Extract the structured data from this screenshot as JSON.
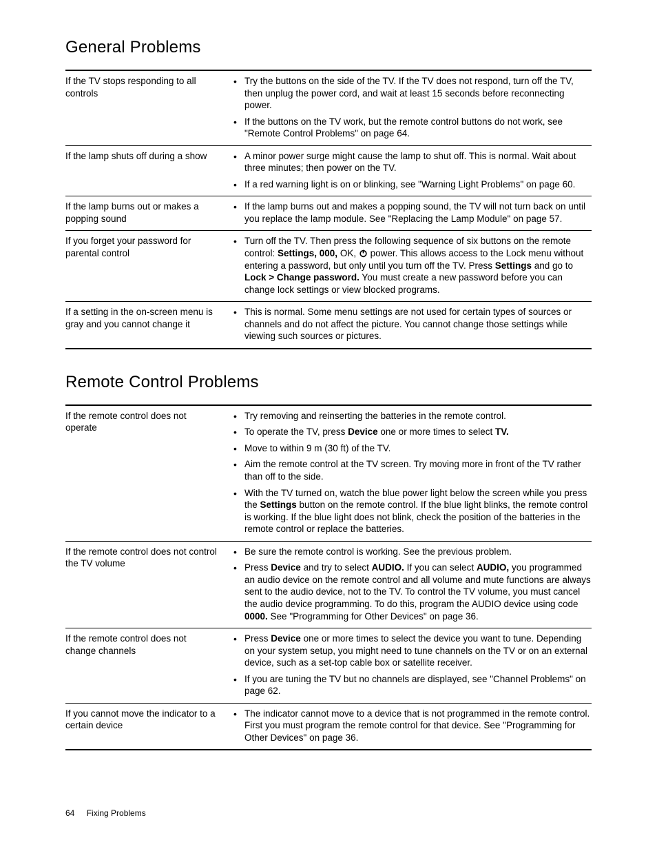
{
  "sections": [
    {
      "heading": "General Problems",
      "rows": [
        {
          "problem": "If the TV stops responding to all controls",
          "bullets": [
            "Try the buttons on the side of the TV. If the TV does not respond, turn off the TV, then unplug the power cord, and wait at least 15 seconds before reconnecting power.",
            "If the buttons on the TV work, but the remote control buttons do not work, see \"Remote Control Problems\" on page 64."
          ]
        },
        {
          "problem": "If the lamp shuts off during a show",
          "bullets": [
            "A minor power surge might cause the lamp to shut off. This is normal. Wait about three minutes; then power on the TV.",
            "If a red warning light is on or blinking, see \"Warning Light Problems\" on page 60."
          ]
        },
        {
          "problem": "If the lamp burns out or makes a popping sound",
          "bullets": [
            "If the lamp burns out and makes a popping sound, the TV will not turn back on until you replace the lamp module. See \"Replacing the Lamp Module\" on page 57."
          ]
        },
        {
          "problem": "If you forget your password for parental control",
          "bullets_html": [
            "Turn off the TV. Then press the following sequence of six buttons on the remote control: <b>Settings, 000,</b> OK, {{POWER}} power. This allows access to the Lock menu without entering a password, but only until you turn off the TV. Press <b>Settings</b> and go to <b>Lock &gt; Change password.</b> You must create a new password before you can change lock settings or view blocked programs."
          ]
        },
        {
          "problem": "If a setting in the on-screen menu is gray and you cannot change it",
          "bullets": [
            "This is normal. Some menu settings are not used for certain types of sources or channels and do not affect the picture. You cannot change those settings while viewing such sources or pictures."
          ]
        }
      ]
    },
    {
      "heading": "Remote Control Problems",
      "rows": [
        {
          "problem": "If the remote control does not operate",
          "bullets_html": [
            "Try removing and reinserting the batteries in the remote control.",
            "To operate the TV, press <b>Device</b> one or more times to select <b>TV.</b>",
            "Move to within 9 m (30 ft) of the TV.",
            "Aim the remote control at the TV screen. Try moving more in front of the TV rather than off to the side.",
            "With the TV turned on, watch the blue power light below the screen while you press the <b>Settings</b> button on the remote control. If the blue light blinks, the remote control is working. If the blue light does not blink, check the position of the batteries in the remote control or replace the batteries."
          ]
        },
        {
          "problem": "If the remote control does not control the TV volume",
          "bullets_html": [
            "Be sure the remote control is working. See the previous problem.",
            "Press <b>Device</b> and try to select <b>AUDIO.</b> If you can select <b>AUDIO,</b> you programmed an audio device on the remote control and all volume and mute functions are always sent to the audio device, not to the TV. To control the TV volume, you must cancel the audio device programming. To do this, program the AUDIO device using code <b>0000.</b> See \"Programming for Other Devices\" on page 36."
          ]
        },
        {
          "problem": "If the remote control does not change channels",
          "bullets_html": [
            "Press <b>Device</b> one or more times to select the device you want to tune. Depending on your system setup, you might need to tune channels on the TV or on an external device, such as a set-top cable box or satellite receiver.",
            "If you are tuning the TV but no channels are displayed, see \"Channel Problems\" on page 62."
          ]
        },
        {
          "problem": "If you cannot move the indicator to a certain device",
          "bullets": [
            "The indicator cannot move to a device that is not programmed in the remote control. First you must program the remote control for that device. See \"Programming for Other Devices\" on page 36."
          ]
        }
      ]
    }
  ],
  "footer": {
    "page": "64",
    "title": "Fixing Problems"
  },
  "power_icon_svg": "<svg viewBox='0 0 24 24' fill='none' stroke='#000' stroke-width='3'><circle cx='12' cy='13' r='8'/><line x1='12' y1='3' x2='12' y2='12'/></svg>"
}
